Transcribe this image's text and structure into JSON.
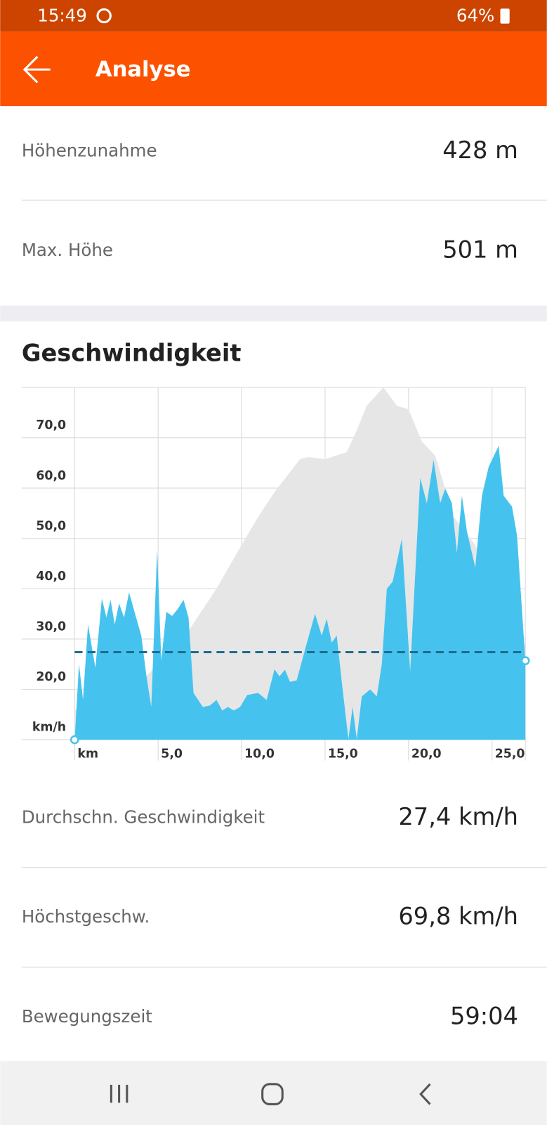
{
  "status_bar": {
    "time": "15:49",
    "battery": "64%"
  },
  "header": {
    "title": "Analyse"
  },
  "stats_top": [
    {
      "label": "Höhenzunahme",
      "value": "428 m"
    },
    {
      "label": "Max. Höhe",
      "value": "501 m"
    }
  ],
  "chart_data": {
    "type": "area",
    "title": "Geschwindigkeit",
    "xlim": [
      0,
      27
    ],
    "xticks": [
      {
        "value": 0,
        "label": "km"
      },
      {
        "value": 5,
        "label": "5,0"
      },
      {
        "value": 10,
        "label": "10,0"
      },
      {
        "value": 15,
        "label": "15,0"
      },
      {
        "value": 20,
        "label": "20,0"
      },
      {
        "value": 25,
        "label": "25,0"
      }
    ],
    "ylim": [
      10,
      80
    ],
    "yticks": [
      {
        "value": 10,
        "label": "km/h"
      },
      {
        "value": 20,
        "label": "20,0"
      },
      {
        "value": 30,
        "label": "30,0"
      },
      {
        "value": 40,
        "label": "40,0"
      },
      {
        "value": 50,
        "label": "50,0"
      },
      {
        "value": 60,
        "label": "60,0"
      },
      {
        "value": 70,
        "label": "70,0"
      }
    ],
    "y2lim": [
      0,
      501
    ],
    "grid": true,
    "average": 27.4,
    "average_color": "#1d6b8c",
    "series": [
      {
        "color": "#e6e6e6",
        "axis": "y2",
        "x": [
          0,
          4,
          6.8,
          8.5,
          10,
          11,
          12,
          13.5,
          14,
          15,
          16.3,
          16.9,
          17.5,
          18.5,
          19.3,
          20,
          20.8,
          21.6,
          22.7,
          24,
          25,
          26,
          27
        ],
        "values": [
          42,
          83,
          154,
          215,
          277,
          317,
          353,
          399,
          402,
          399,
          409,
          440,
          475,
          501,
          475,
          470,
          424,
          404,
          317,
          277,
          215,
          174,
          134
        ]
      },
      {
        "color": "#45c3ee",
        "x": [
          0,
          0.26,
          0.5,
          0.8,
          1.24,
          1.63,
          1.9,
          2.15,
          2.4,
          2.66,
          2.96,
          3.26,
          3.56,
          3.99,
          4.29,
          4.59,
          4.94,
          5.19,
          5.49,
          5.84,
          6.18,
          6.52,
          6.82,
          7.12,
          7.68,
          8.1,
          8.5,
          8.84,
          9.18,
          9.53,
          9.91,
          10.34,
          10.99,
          11.5,
          11.97,
          12.27,
          12.6,
          12.9,
          13.3,
          13.8,
          14,
          14.4,
          14.8,
          15.1,
          15.4,
          15.7,
          16.05,
          16.4,
          16.65,
          16.9,
          17.2,
          17.7,
          18.1,
          18.4,
          18.7,
          19.05,
          19.6,
          20.1,
          20.7,
          21.1,
          21.5,
          21.9,
          22.2,
          22.6,
          22.9,
          23.2,
          23.5,
          24,
          24.4,
          24.8,
          25.4,
          25.7,
          26.2,
          26.5,
          27
        ],
        "values": [
          10,
          25,
          18,
          32.9,
          24.3,
          38.1,
          34.3,
          37.8,
          32.9,
          37.1,
          34.3,
          39.3,
          35.7,
          30.7,
          22.9,
          16.5,
          47.8,
          25.7,
          35.4,
          34.6,
          36,
          37.8,
          34.3,
          19.3,
          16.5,
          16.8,
          17.9,
          15.8,
          16.5,
          15.8,
          16.5,
          18.9,
          19.3,
          17.9,
          24,
          22.6,
          23.9,
          21.5,
          21.8,
          27.9,
          30.3,
          35,
          30.7,
          34,
          29.3,
          30.7,
          20.1,
          10.1,
          16.5,
          10.1,
          18.6,
          20,
          18.6,
          25,
          40,
          41.4,
          49.9,
          23.6,
          62,
          57,
          65.6,
          57,
          59.9,
          57,
          47.1,
          58.5,
          51.4,
          44.2,
          58.5,
          64.2,
          68.4,
          58.5,
          56.3,
          50.6,
          25.7
        ]
      }
    ]
  },
  "stats_bottom": [
    {
      "label": "Durchschn. Geschwindigkeit",
      "value": "27,4 km/h"
    },
    {
      "label": "Höchstgeschw.",
      "value": "69,8 km/h"
    },
    {
      "label": "Bewegungszeit",
      "value": "59:04"
    }
  ]
}
